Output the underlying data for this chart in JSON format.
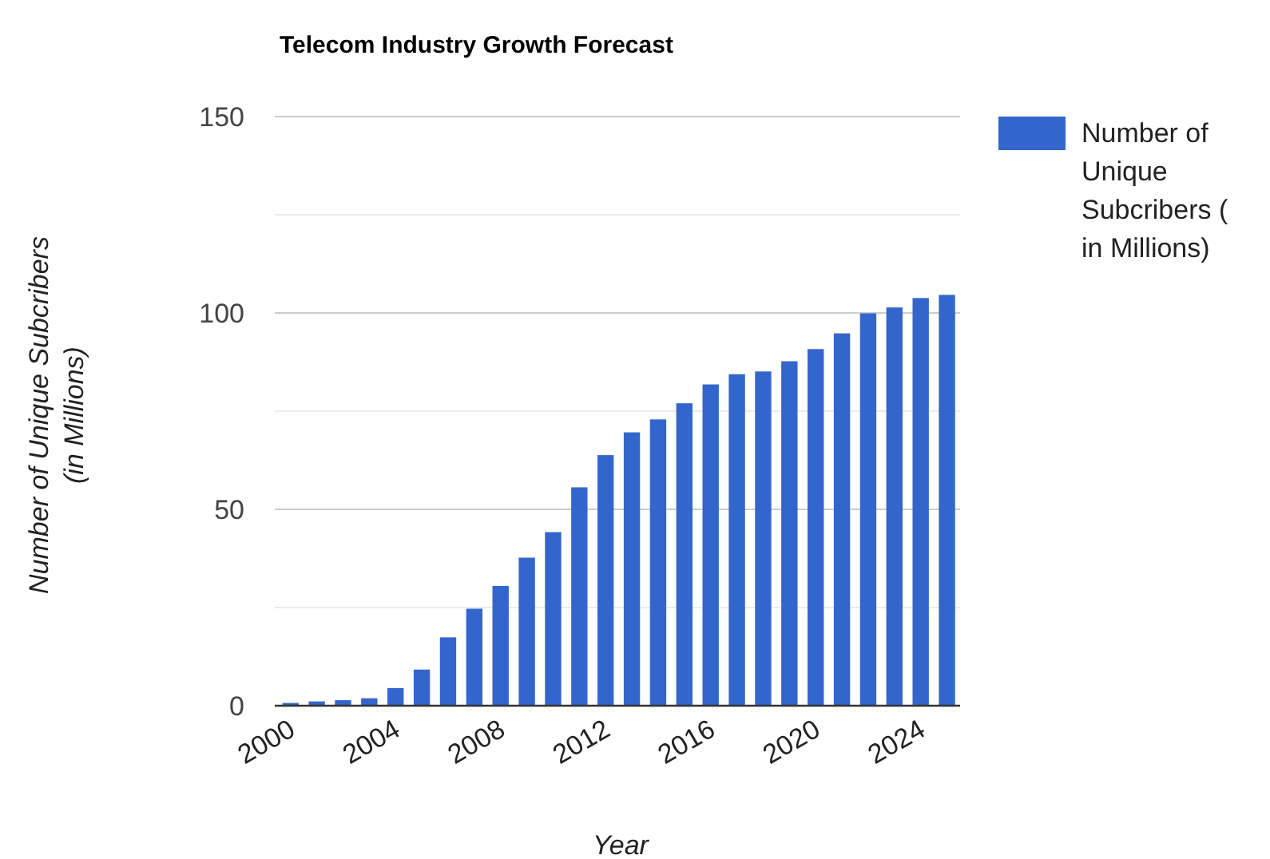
{
  "chart_data": {
    "type": "bar",
    "title": "Telecom Industry Growth Forecast",
    "xlabel": "Year",
    "ylabel": "Number of Unique Subcribers (in Millions)",
    "x": [
      2000,
      2001,
      2002,
      2003,
      2004,
      2005,
      2006,
      2007,
      2008,
      2009,
      2010,
      2011,
      2012,
      2013,
      2014,
      2015,
      2016,
      2017,
      2018,
      2019,
      2020,
      2021,
      2022,
      2023,
      2024,
      2025
    ],
    "series": [
      {
        "name": "Number of Unique Subcribers ( in Millions)",
        "color": "#3366cc",
        "values": [
          0.7,
          1.1,
          1.4,
          1.9,
          4.5,
          9.2,
          17.4,
          24.7,
          30.5,
          37.7,
          44.2,
          55.6,
          63.8,
          69.6,
          72.9,
          77.0,
          81.8,
          84.4,
          85.1,
          87.7,
          90.8,
          94.8,
          99.9,
          101.4,
          103.8,
          104.6
        ]
      }
    ],
    "xlim": [
      1999.4,
      2025.5
    ],
    "xticks": [
      2000,
      2004,
      2008,
      2012,
      2016,
      2020,
      2024
    ],
    "ylim": [
      0,
      150
    ],
    "yticks": [
      0,
      {
        "value": 25,
        "label": null
      },
      50,
      {
        "value": 75,
        "label": null
      },
      100,
      {
        "value": 125,
        "label": null
      },
      150
    ],
    "grid": "y",
    "legend": "top right"
  }
}
